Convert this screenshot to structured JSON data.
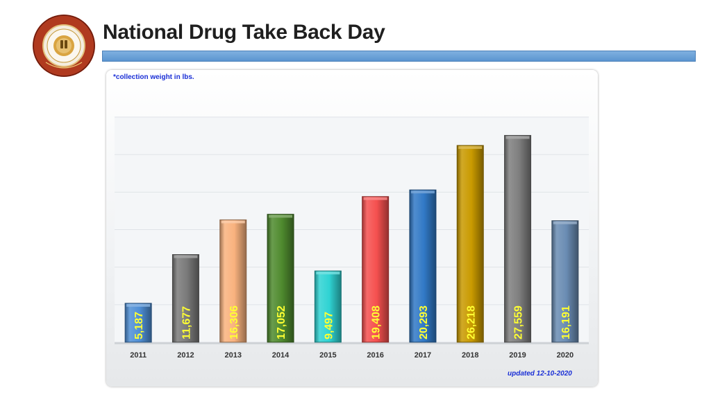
{
  "header": {
    "title": "National Drug Take Back Day",
    "seal_text": "OFFICE OF DRUG CONTROL POLICY",
    "seal_inner_text": "COMMONWEALTH OF KENTUCKY",
    "seal_bottom_text": "JUSTICE & PUBLIC SAFETY CABINET"
  },
  "notes": {
    "collection_note": "*collection weight in lbs.",
    "updated": "updated 12-10-2020"
  },
  "colors": {
    "title_bar": "#5b95d0",
    "label_text": "#ffff33",
    "note_text": "#1a2fd6"
  },
  "chart_data": {
    "type": "bar",
    "categories": [
      "2011",
      "2012",
      "2013",
      "2014",
      "2015",
      "2016",
      "2017",
      "2018",
      "2019",
      "2020"
    ],
    "values": [
      5187,
      11677,
      16306,
      17052,
      9497,
      19408,
      20293,
      26218,
      27559,
      16191
    ],
    "value_labels": [
      "5,187",
      "11,677",
      "16,306",
      "17,052",
      "9,497",
      "19,408",
      "20,293",
      "26,218",
      "27,559",
      "16,191"
    ],
    "bar_colors": [
      "#4f8fd6",
      "#7a7a7a",
      "#f9b27e",
      "#4f8a2e",
      "#2fd3d3",
      "#f5504f",
      "#3179c6",
      "#c99a00",
      "#7f7f7f",
      "#6a8cb3"
    ],
    "title": "",
    "xlabel": "",
    "ylabel": "",
    "ylim": [
      0,
      30000
    ],
    "grid": true,
    "legend": "none"
  }
}
